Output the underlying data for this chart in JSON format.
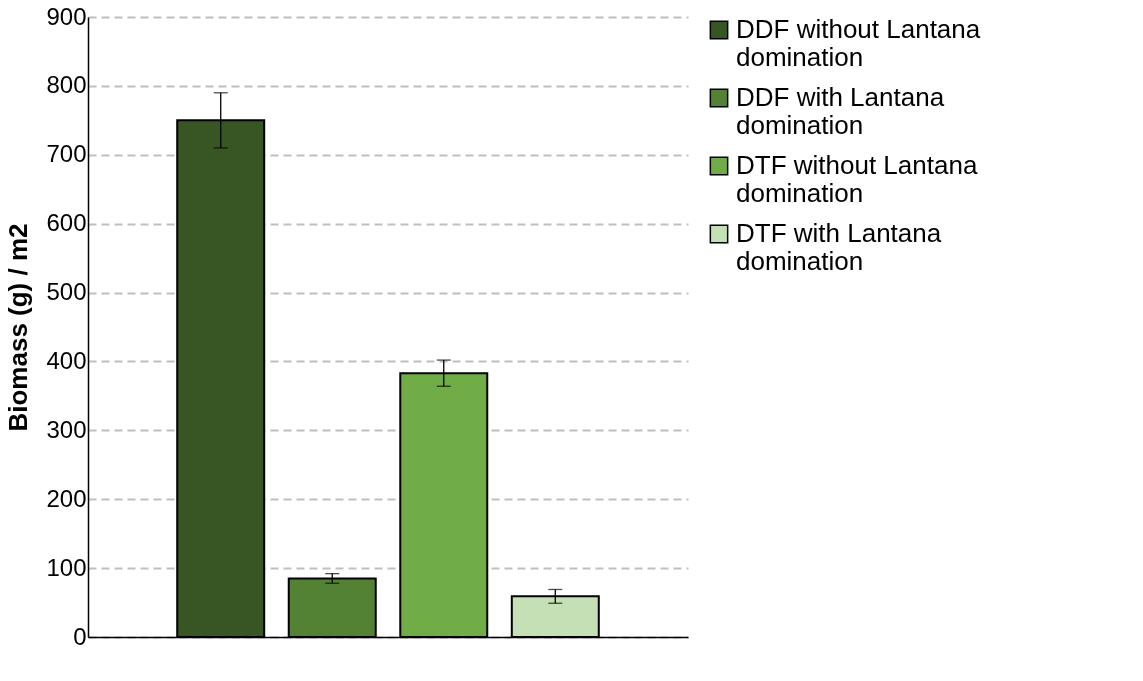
{
  "chart_data": {
    "type": "bar",
    "ylabel": "Biomass (g) / m2",
    "categories": [
      null
    ],
    "series": [
      {
        "name": "DDF without Lantana domination",
        "color": "#375623",
        "values": [
          750
        ],
        "errors": [
          40
        ]
      },
      {
        "name": "DDF with Lantana domination",
        "color": "#548235",
        "values": [
          85
        ],
        "errors": [
          7
        ]
      },
      {
        "name": "DTF without Lantana domination",
        "color": "#70ad47",
        "values": [
          383
        ],
        "errors": [
          19
        ]
      },
      {
        "name": "DTF with Lantana domination",
        "color": "#c5e0b4",
        "values": [
          59
        ],
        "errors": [
          10
        ]
      }
    ],
    "ylim": [
      0,
      900
    ],
    "yticks": [
      0,
      100,
      200,
      300,
      400,
      500,
      600,
      700,
      800,
      900
    ],
    "grid": "y",
    "legend": "right",
    "tick_labels": "y"
  }
}
